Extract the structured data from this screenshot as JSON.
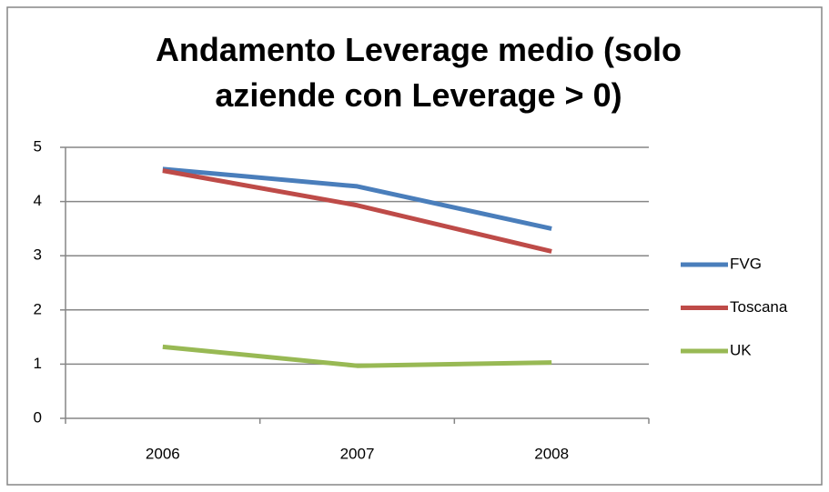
{
  "chart_data": {
    "type": "line",
    "title": "Andamento Leverage medio (solo aziende con Leverage > 0)",
    "categories": [
      "2006",
      "2007",
      "2008"
    ],
    "series": [
      {
        "name": "FVG",
        "color": "#4a7ebb",
        "values": [
          4.6,
          4.28,
          3.5
        ]
      },
      {
        "name": "Toscana",
        "color": "#be4b48",
        "values": [
          4.57,
          3.93,
          3.08
        ]
      },
      {
        "name": "UK",
        "color": "#98b954",
        "values": [
          1.32,
          0.97,
          1.03
        ]
      }
    ],
    "ylim": [
      0,
      5
    ],
    "yticks": [
      0,
      1,
      2,
      3,
      4,
      5
    ],
    "grid": true,
    "legend": "right"
  }
}
